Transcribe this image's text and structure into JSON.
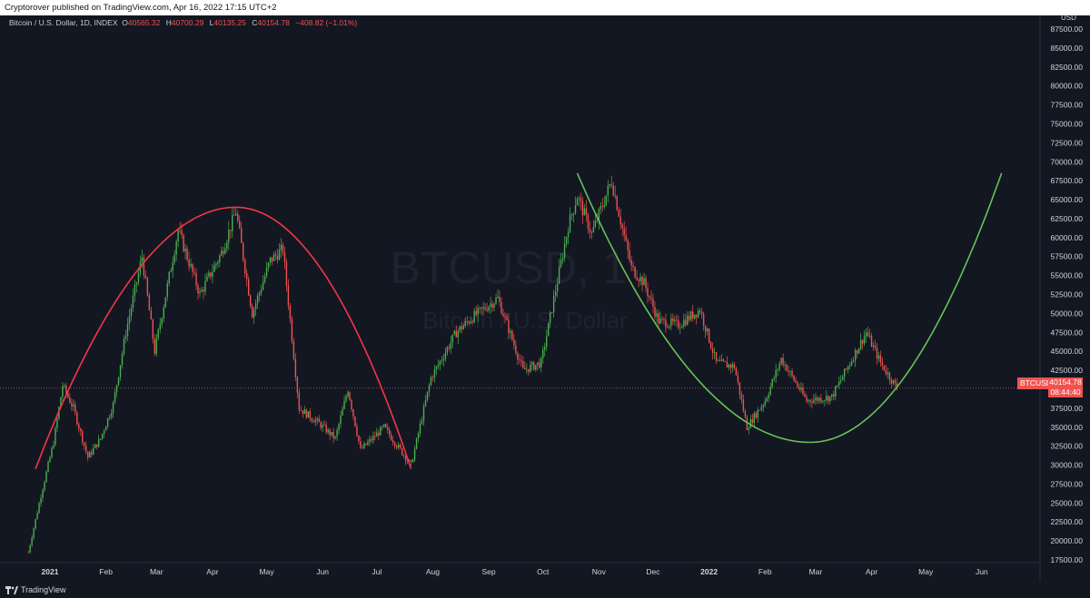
{
  "header": {
    "publish_line": "Cryptorover published on TradingView.com, Apr 16, 2022 17:15 UTC+2"
  },
  "legend": {
    "symbol": "Bitcoin / U.S. Dollar, 1D, INDEX",
    "o_label": "O",
    "o_value": "40565.32",
    "h_label": "H",
    "h_value": "40700.29",
    "l_label": "L",
    "l_value": "40135.25",
    "c_label": "C",
    "c_value": "40154.78",
    "change": "−408.82 (−1.01%)"
  },
  "watermark": {
    "line1": "BTCUSD, 1",
    "line2": "Bitcoin / U.S. Dollar"
  },
  "price_axis": {
    "currency": "USD",
    "ticks": [
      "17500.00",
      "20000.00",
      "22500.00",
      "25000.00",
      "27500.00",
      "30000.00",
      "32500.00",
      "35000.00",
      "37500.00",
      "40000.00",
      "42500.00",
      "45000.00",
      "47500.00",
      "50000.00",
      "52500.00",
      "55000.00",
      "57500.00",
      "60000.00",
      "62500.00",
      "65000.00",
      "67500.00",
      "70000.00",
      "72500.00",
      "75000.00",
      "77500.00",
      "80000.00",
      "82500.00",
      "85000.00",
      "87500.00"
    ]
  },
  "last_price": {
    "symbol_tag": "BTCUSD",
    "price": "40154.78",
    "countdown": "08:44:40"
  },
  "footer": {
    "brand": "TradingView"
  },
  "colors": {
    "background": "#131722",
    "up": "#4caf50",
    "down": "#ef5350",
    "arc_red": "#f23645",
    "arc_green": "#66c256",
    "axis_text": "#d1d4dc"
  },
  "chart_data": {
    "type": "line",
    "title": "Bitcoin / U.S. Dollar, 1D, INDEX",
    "xlabel": "",
    "ylabel": "",
    "ylim": [
      16500,
      87500
    ],
    "x_tick_labels": [
      "2021",
      "Feb",
      "Mar",
      "Apr",
      "May",
      "Jun",
      "Jul",
      "Aug",
      "Sep",
      "Oct",
      "Nov",
      "Dec",
      "2022",
      "Feb",
      "Mar",
      "Apr",
      "May",
      "Jun"
    ],
    "y_tick_labels": [
      "17500.00",
      "20000.00",
      "22500.00",
      "25000.00",
      "27500.00",
      "30000.00",
      "32500.00",
      "35000.00",
      "37500.00",
      "40000.00",
      "42500.00",
      "45000.00",
      "47500.00",
      "50000.00",
      "52500.00",
      "55000.00",
      "57500.00",
      "60000.00",
      "62500.00",
      "65000.00",
      "67500.00",
      "70000.00",
      "72500.00",
      "75000.00",
      "77500.00",
      "80000.00",
      "82500.00",
      "85000.00",
      "87500.00"
    ],
    "series": [
      {
        "approx_daily_close": [
          [
            "2020-12-20",
            18500
          ],
          [
            "2020-12-27",
            26000
          ],
          [
            "2021-01-03",
            33000
          ],
          [
            "2021-01-08",
            40500
          ],
          [
            "2021-01-14",
            37500
          ],
          [
            "2021-01-22",
            31000
          ],
          [
            "2021-01-29",
            33500
          ],
          [
            "2021-02-05",
            38000
          ],
          [
            "2021-02-12",
            47500
          ],
          [
            "2021-02-21",
            57500
          ],
          [
            "2021-02-28",
            45000
          ],
          [
            "2021-03-13",
            61000
          ],
          [
            "2021-03-25",
            52500
          ],
          [
            "2021-04-06",
            58000
          ],
          [
            "2021-04-14",
            63500
          ],
          [
            "2021-04-23",
            50000
          ],
          [
            "2021-05-03",
            57000
          ],
          [
            "2021-05-10",
            58500
          ],
          [
            "2021-05-19",
            37500
          ],
          [
            "2021-05-30",
            35500
          ],
          [
            "2021-06-08",
            33500
          ],
          [
            "2021-06-15",
            40000
          ],
          [
            "2021-06-22",
            32000
          ],
          [
            "2021-07-05",
            35000
          ],
          [
            "2021-07-20",
            30000
          ],
          [
            "2021-07-31",
            41500
          ],
          [
            "2021-08-14",
            47500
          ],
          [
            "2021-08-23",
            49500
          ],
          [
            "2021-09-06",
            52000
          ],
          [
            "2021-09-20",
            42500
          ],
          [
            "2021-09-30",
            43500
          ],
          [
            "2021-10-15",
            61500
          ],
          [
            "2021-10-20",
            65500
          ],
          [
            "2021-10-28",
            60500
          ],
          [
            "2021-11-08",
            67500
          ],
          [
            "2021-11-19",
            56000
          ],
          [
            "2021-11-26",
            54000
          ],
          [
            "2021-12-04",
            49000
          ],
          [
            "2021-12-15",
            48500
          ],
          [
            "2021-12-27",
            50500
          ],
          [
            "2022-01-05",
            43500
          ],
          [
            "2022-01-15",
            43000
          ],
          [
            "2022-01-22",
            35000
          ],
          [
            "2022-02-01",
            38500
          ],
          [
            "2022-02-10",
            44000
          ],
          [
            "2022-02-24",
            38500
          ],
          [
            "2022-03-10",
            39000
          ],
          [
            "2022-03-29",
            47500
          ],
          [
            "2022-04-06",
            43500
          ],
          [
            "2022-04-15",
            40154.78
          ]
        ]
      }
    ],
    "overlay_curves": [
      {
        "kind": "red arc",
        "from": [
          "2020-12-24",
          29500
        ],
        "peak": [
          "2021-04-14",
          64000
        ],
        "to": [
          "2021-07-20",
          29500
        ]
      },
      {
        "kind": "green arc",
        "from": [
          "2021-10-20",
          68500
        ],
        "trough": [
          "2022-02-26",
          33000
        ],
        "to": [
          "2022-06-12",
          68500
        ]
      }
    ]
  }
}
